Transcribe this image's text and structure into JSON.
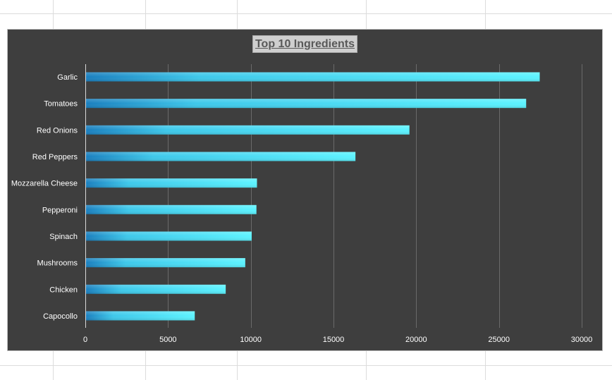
{
  "chart_data": {
    "type": "bar",
    "orientation": "horizontal",
    "title": "Top 10 Ingredients",
    "categories": [
      "Garlic",
      "Tomatoes",
      "Red Onions",
      "Red Peppers",
      "Mozzarella Cheese",
      "Pepperoni",
      "Spinach",
      "Mushrooms",
      "Chicken",
      "Capocollo"
    ],
    "values": [
      27422,
      26601,
      19547,
      16284,
      10333,
      10300,
      10012,
      9624,
      8443,
      6572
    ],
    "xlim": [
      0,
      30000
    ],
    "xticks": [
      0,
      5000,
      10000,
      15000,
      20000,
      25000,
      30000
    ],
    "grid": true,
    "colors": {
      "background": "#3e3e3e",
      "bar_dark": "#1a7fbf",
      "bar_light": "#5cf3ff",
      "gridline": "#6a6a6a",
      "text": "#ffffff"
    }
  }
}
